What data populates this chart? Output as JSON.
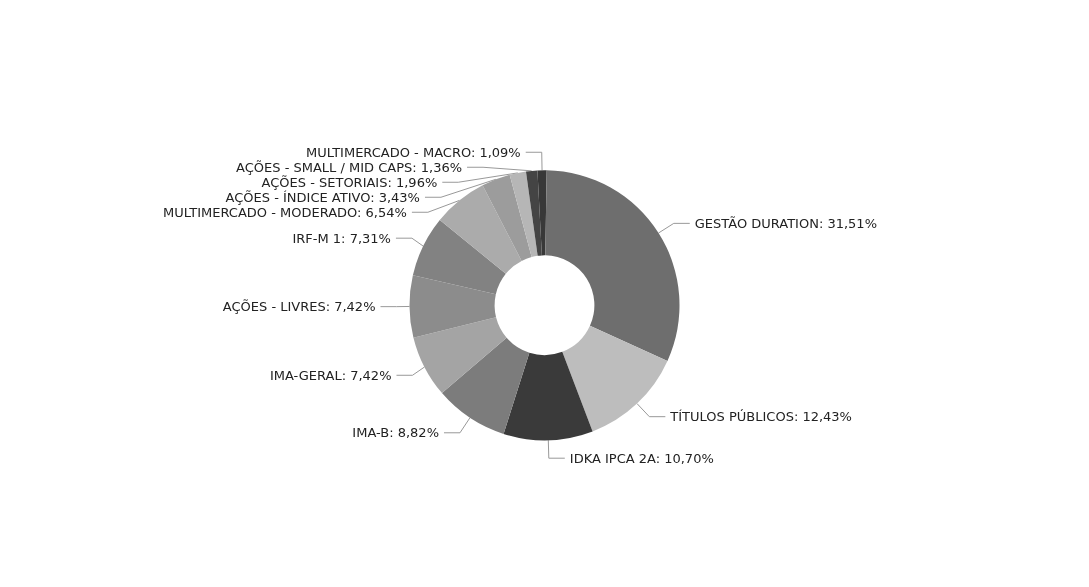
{
  "chart_data": {
    "type": "donut",
    "categories": [
      "MULTIMERCADO - MACRO",
      "GESTÃO DURATION",
      "TÍTULOS PÚBLICOS",
      "IDKA IPCA 2A",
      "IMA-B",
      "IMA-GERAL",
      "AÇÕES - LIVRES",
      "IRF-M 1",
      "MULTIMERCADO - MODERADO",
      "AÇÕES - ÍNDICE ATIVO",
      "AÇÕES - SETORIAIS",
      "AÇÕES - SMALL / MID CAPS"
    ],
    "values": [
      1.09,
      31.51,
      12.43,
      10.7,
      8.82,
      7.42,
      7.42,
      7.31,
      6.54,
      3.43,
      1.96,
      1.36
    ],
    "value_labels": [
      "1,09%",
      "31,51%",
      "12,43%",
      "10,70%",
      "8,82%",
      "7,42%",
      "7,42%",
      "7,31%",
      "6,54%",
      "3,43%",
      "1,96%",
      "1,36%"
    ],
    "colors": [
      "#383838",
      "#6e6e6e",
      "#bdbdbd",
      "#3a3a3a",
      "#7c7c7c",
      "#a4a4a4",
      "#8c8c8c",
      "#828282",
      "#ababab",
      "#9c9c9c",
      "#b6b6b6",
      "#444444"
    ],
    "legend": false
  }
}
